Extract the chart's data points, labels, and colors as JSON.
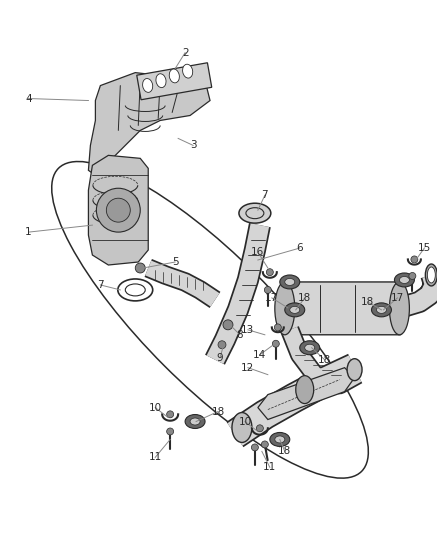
{
  "bg_color": "#ffffff",
  "line_color": "#2a2a2a",
  "label_color": "#2a2a2a",
  "callout_line_color": "#888888",
  "figsize": [
    4.38,
    5.33
  ],
  "dpi": 100
}
